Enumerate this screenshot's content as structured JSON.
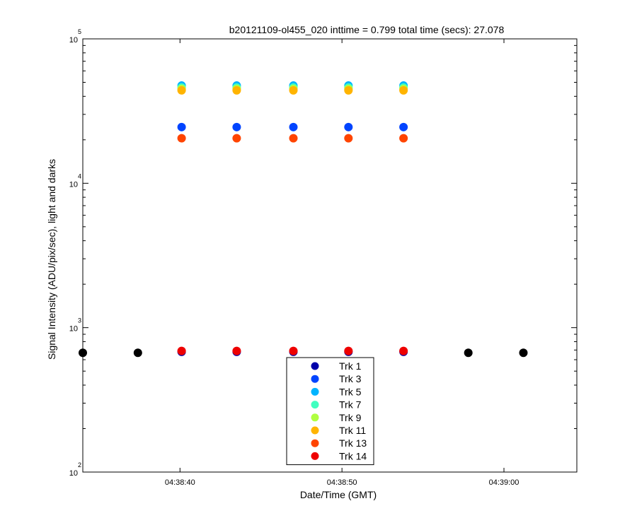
{
  "chart_data": {
    "type": "scatter",
    "title": "b20121109-ol455_020 inttime = 0.799 total time (secs): 27.078",
    "xlabel": "Date/Time (GMT)",
    "ylabel": "Signal Intensity (ADU/pix/sec), light and darks",
    "yscale": "log",
    "ylim": [
      100,
      100000
    ],
    "xlim_seconds": [
      34.0,
      64.5
    ],
    "x_ticks": [
      {
        "value": 40,
        "label": "04:38:40"
      },
      {
        "value": 50,
        "label": "04:38:50"
      },
      {
        "value": 60,
        "label": "04:39:00"
      }
    ],
    "y_ticks": [
      {
        "value": 100,
        "base": "10",
        "exp": "2"
      },
      {
        "value": 1000,
        "base": "10",
        "exp": "3"
      },
      {
        "value": 10000,
        "base": "10",
        "exp": "4"
      },
      {
        "value": 100000,
        "base": "10",
        "exp": "5"
      }
    ],
    "grid": false,
    "legend_position": "bottom-center",
    "series": [
      {
        "name": "Trk 1",
        "color": "#0000aa",
        "x": [
          40.1,
          43.5,
          47.0,
          50.4,
          53.8
        ],
        "y": [
          680,
          680,
          680,
          680,
          680
        ]
      },
      {
        "name": "Trk 3",
        "color": "#0044ff",
        "x": [
          40.1,
          43.5,
          47.0,
          50.4,
          53.8
        ],
        "y": [
          24500,
          24500,
          24500,
          24500,
          24500
        ]
      },
      {
        "name": "Trk 5",
        "color": "#00b4ff",
        "x": [
          40.1,
          43.5,
          47.0,
          50.4,
          53.8
        ],
        "y": [
          47500,
          47500,
          47500,
          47500,
          47500
        ]
      },
      {
        "name": "Trk 7",
        "color": "#40ffc0",
        "x": [
          40.1,
          43.5,
          47.0,
          50.4,
          53.8
        ],
        "y": [
          46000,
          46000,
          46000,
          46000,
          46000
        ]
      },
      {
        "name": "Trk 9",
        "color": "#b0ff40",
        "x": [
          40.1,
          43.5,
          47.0,
          50.4,
          53.8
        ],
        "y": [
          45000,
          45000,
          45000,
          45000,
          45000
        ]
      },
      {
        "name": "Trk 11",
        "color": "#ffb400",
        "x": [
          40.1,
          43.5,
          47.0,
          50.4,
          53.8
        ],
        "y": [
          44000,
          44000,
          44000,
          44000,
          44000
        ]
      },
      {
        "name": "Trk 13",
        "color": "#ff4400",
        "x": [
          40.1,
          43.5,
          47.0,
          50.4,
          53.8
        ],
        "y": [
          20500,
          20500,
          20500,
          20500,
          20500
        ]
      },
      {
        "name": "Trk 14",
        "color": "#ee0000",
        "x": [
          40.1,
          43.5,
          47.0,
          50.4,
          53.8
        ],
        "y": [
          690,
          690,
          690,
          690,
          690
        ]
      }
    ],
    "darks": {
      "color": "#000000",
      "x": [
        34.0,
        37.4,
        57.8,
        61.2
      ],
      "y": [
        670,
        670,
        670,
        670
      ]
    }
  }
}
